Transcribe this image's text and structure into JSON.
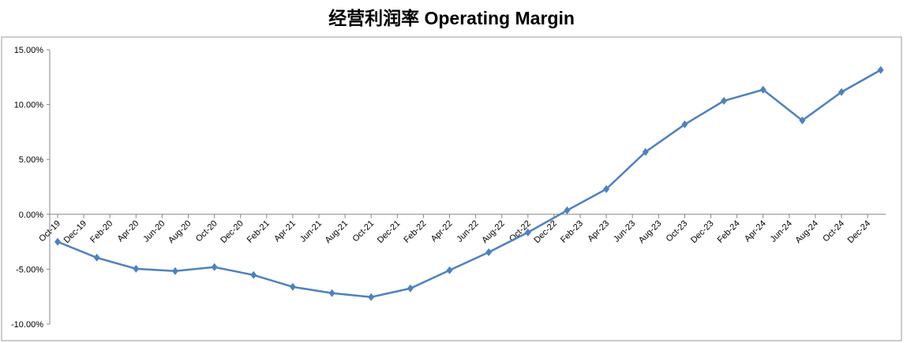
{
  "chart_data": {
    "type": "line",
    "title": "经营利润率 Operating Margin",
    "x": [
      "Oct-19",
      "Jan-20",
      "Apr-20",
      "Jul-20",
      "Oct-20",
      "Jan-21",
      "Apr-21",
      "Jul-21",
      "Oct-21",
      "Jan-22",
      "Apr-22",
      "Jul-22",
      "Oct-22",
      "Jan-23",
      "Apr-23",
      "Jul-23",
      "Oct-23",
      "Jan-24",
      "Apr-24",
      "Jul-24",
      "Oct-24",
      "Jan-25"
    ],
    "series": [
      {
        "name": "Operating Margin",
        "color": "#4f81bd",
        "values": [
          -2.5,
          -3.95,
          -4.96,
          -5.17,
          -4.81,
          -5.53,
          -6.61,
          -7.18,
          -7.54,
          -6.75,
          -5.1,
          -3.45,
          -1.65,
          0.36,
          2.3,
          5.68,
          8.19,
          10.34,
          11.35,
          8.55,
          11.14,
          13.15
        ]
      }
    ],
    "xticks": [
      "Oct-19",
      "Dec-19",
      "Feb-20",
      "Apr-20",
      "Jun-20",
      "Aug-20",
      "Oct-20",
      "Dec-20",
      "Feb-21",
      "Apr-21",
      "Jun-21",
      "Aug-21",
      "Oct-21",
      "Dec-21",
      "Feb-22",
      "Apr-22",
      "Jun-22",
      "Aug-22",
      "Oct-22",
      "Dec-22",
      "Feb-23",
      "Apr-23",
      "Jun-23",
      "Aug-23",
      "Oct-23",
      "Dec-23",
      "Feb-24",
      "Apr-24",
      "Jun-24",
      "Aug-24",
      "Oct-24",
      "Dec-24"
    ],
    "ylim": [
      -10,
      15
    ],
    "yticks": [
      {
        "value": -10,
        "label": "-10.00%"
      },
      {
        "value": -5,
        "label": "-5.00%"
      },
      {
        "value": 0,
        "label": "0.00%"
      },
      {
        "value": 5,
        "label": "5.00%"
      },
      {
        "value": 10,
        "label": "10.00%"
      },
      {
        "value": 15,
        "label": "15.00%"
      }
    ],
    "grid": false
  }
}
